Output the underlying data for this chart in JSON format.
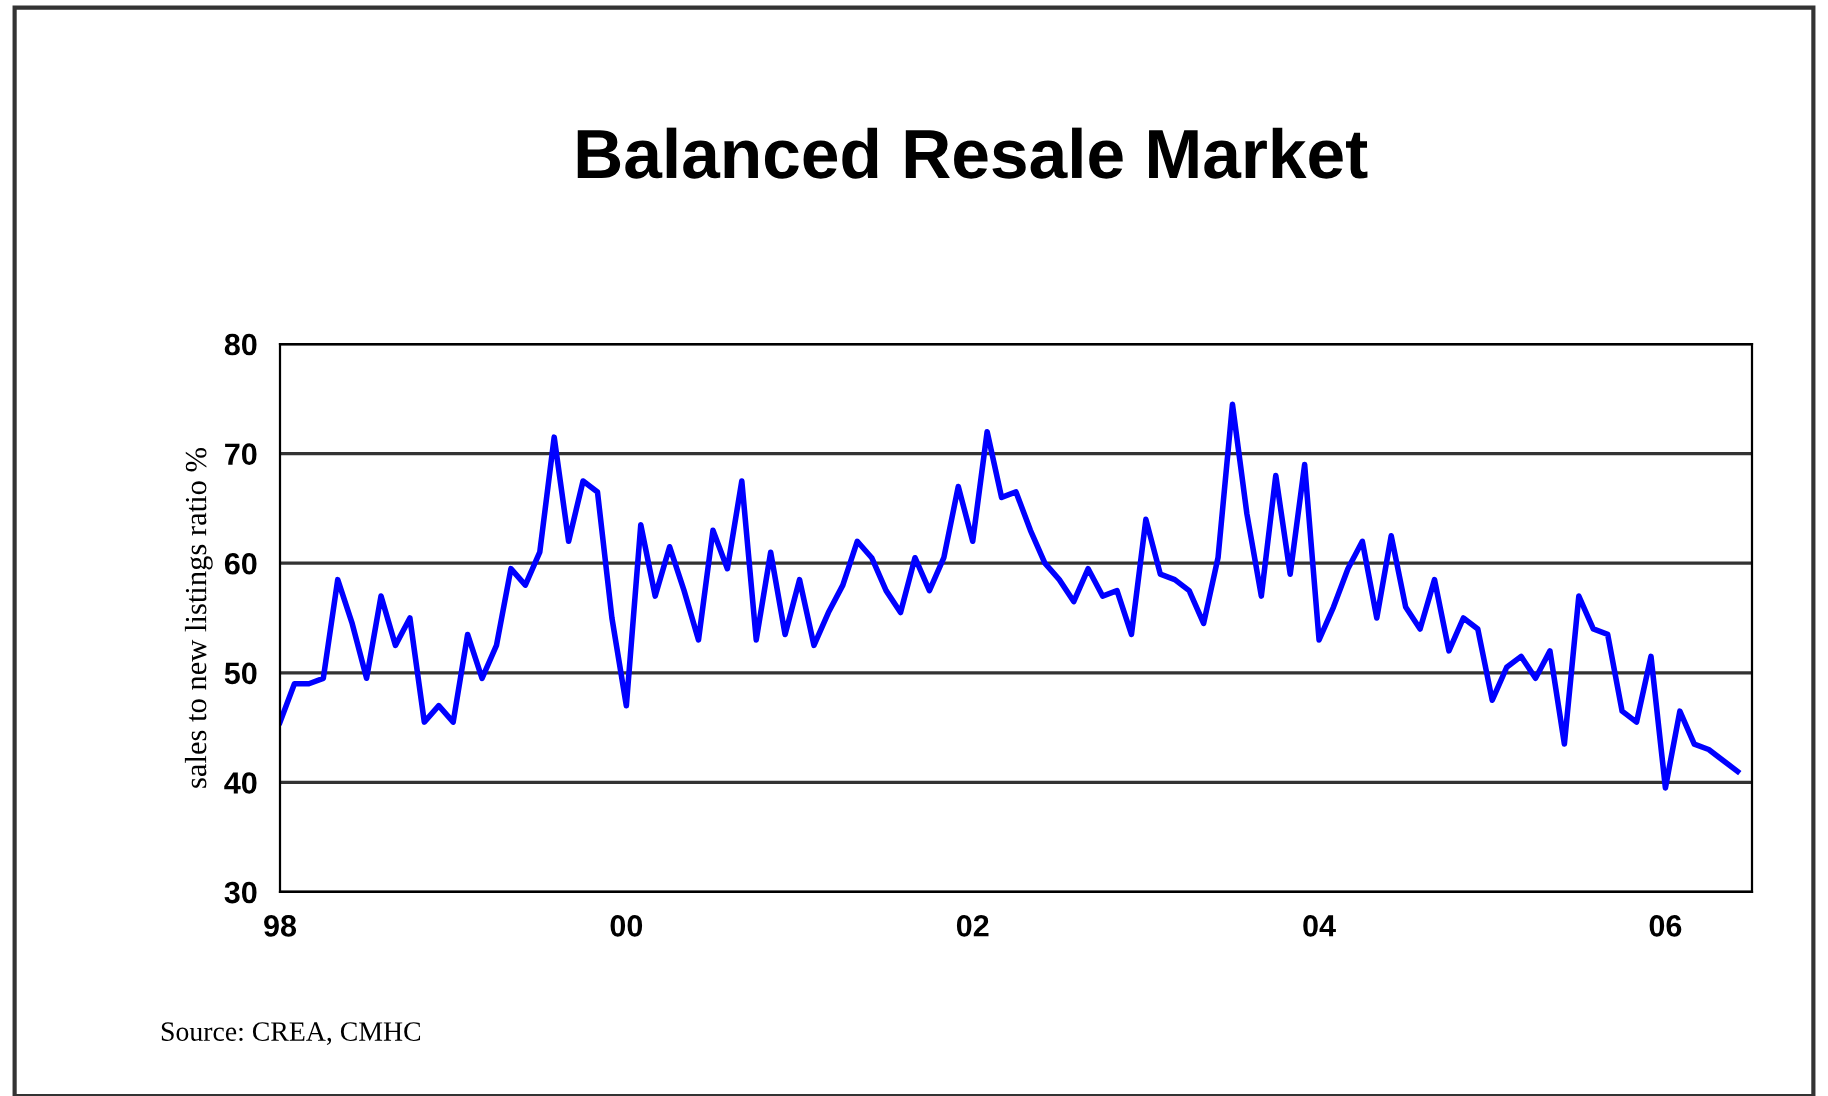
{
  "chart_data": {
    "type": "line",
    "title": "Balanced Resale Market",
    "ylabel": "sales to new listings ratio %",
    "annotations": [
      "Source: CREA, CMHC"
    ],
    "x": [
      "1998-01",
      "1998-02",
      "1998-03",
      "1998-04",
      "1998-05",
      "1998-06",
      "1998-07",
      "1998-08",
      "1998-09",
      "1998-10",
      "1998-11",
      "1998-12",
      "1999-01",
      "1999-02",
      "1999-03",
      "1999-04",
      "1999-05",
      "1999-06",
      "1999-07",
      "1999-08",
      "1999-09",
      "1999-10",
      "1999-11",
      "1999-12",
      "2000-01",
      "2000-02",
      "2000-03",
      "2000-04",
      "2000-05",
      "2000-06",
      "2000-07",
      "2000-08",
      "2000-09",
      "2000-10",
      "2000-11",
      "2000-12",
      "2001-01",
      "2001-02",
      "2001-03",
      "2001-04",
      "2001-05",
      "2001-06",
      "2001-07",
      "2001-08",
      "2001-09",
      "2001-10",
      "2001-11",
      "2001-12",
      "2002-01",
      "2002-02",
      "2002-03",
      "2002-04",
      "2002-05",
      "2002-06",
      "2002-07",
      "2002-08",
      "2002-09",
      "2002-10",
      "2002-11",
      "2002-12",
      "2003-01",
      "2003-02",
      "2003-03",
      "2003-04",
      "2003-05",
      "2003-06",
      "2003-07",
      "2003-08",
      "2003-09",
      "2003-10",
      "2003-11",
      "2003-12",
      "2004-01",
      "2004-02",
      "2004-03",
      "2004-04",
      "2004-05",
      "2004-06",
      "2004-07",
      "2004-08",
      "2004-09",
      "2004-10",
      "2004-11",
      "2004-12",
      "2005-01",
      "2005-02",
      "2005-03",
      "2005-04",
      "2005-05",
      "2005-06",
      "2005-07",
      "2005-08",
      "2005-09",
      "2005-10",
      "2005-11",
      "2005-12",
      "2006-01",
      "2006-02",
      "2006-03",
      "2006-04",
      "2006-05",
      "2006-06"
    ],
    "series": [
      {
        "color": "#0000ff",
        "values": [
          45.5,
          49,
          49,
          49.5,
          58.5,
          54.5,
          49.5,
          57,
          52.5,
          55,
          45.5,
          47,
          45.5,
          53.5,
          49.5,
          52.5,
          59.5,
          58,
          61,
          71.5,
          62,
          67.5,
          66.5,
          55,
          47,
          63.5,
          57,
          61.5,
          57.5,
          53,
          63,
          59.5,
          67.5,
          53,
          61,
          53.5,
          58.5,
          52.5,
          55.5,
          58,
          62,
          60.5,
          57.5,
          55.5,
          60.5,
          57.5,
          60.5,
          67,
          62,
          72,
          66,
          66.5,
          63,
          60,
          58.5,
          56.5,
          59.5,
          57,
          57.5,
          53.5,
          64,
          59,
          58.5,
          57.5,
          54.5,
          60.5,
          74.5,
          64.5,
          57,
          68,
          59,
          69,
          53,
          56,
          59.5,
          62,
          55,
          62.5,
          56,
          54,
          58.5,
          52,
          55,
          54,
          47.5,
          50.5,
          51.5,
          49.5,
          52,
          43.5,
          57,
          54,
          53.5,
          46.5,
          45.5,
          51.5,
          39.5,
          46.5,
          43.5,
          43,
          42,
          41
        ]
      }
    ],
    "xlim": [
      "1998-01",
      "2006-07"
    ],
    "xticks": [
      {
        "value": "1998-01",
        "label": "98"
      },
      {
        "value": "2000-01",
        "label": "00"
      },
      {
        "value": "2002-01",
        "label": "02"
      },
      {
        "value": "2004-01",
        "label": "04"
      },
      {
        "value": "2006-01",
        "label": "06"
      }
    ],
    "ylim": [
      30,
      80
    ],
    "yticks": [
      30,
      40,
      50,
      60,
      70,
      80
    ],
    "grid": "y",
    "legend": false,
    "marker": "none",
    "line_style": "solid"
  }
}
